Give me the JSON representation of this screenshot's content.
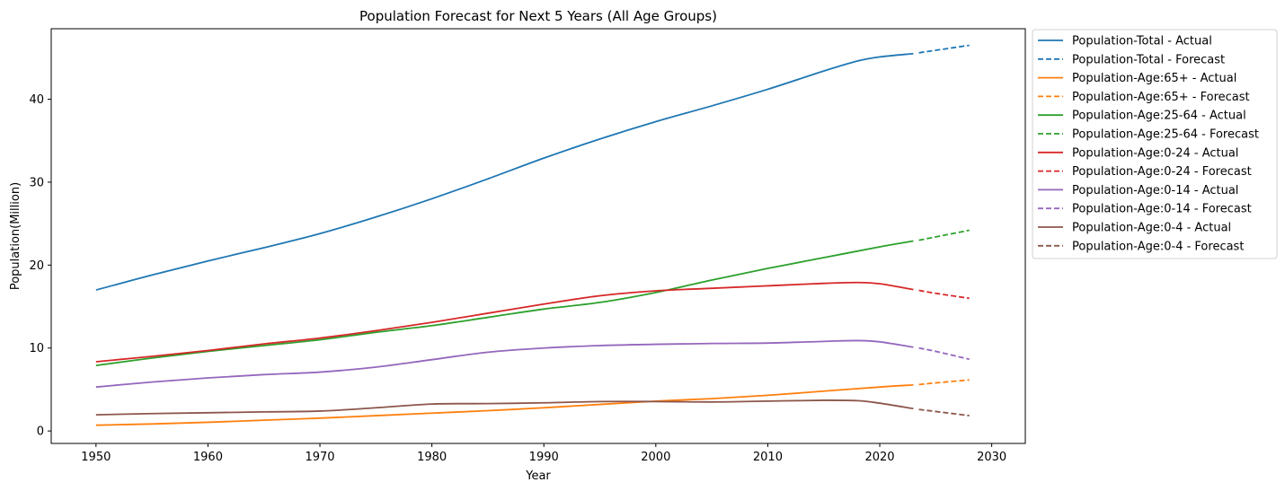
{
  "chart_data": {
    "type": "line",
    "title": "Population Forecast for Next 5 Years (All Age Groups)",
    "xlabel": "Year",
    "ylabel": "Population(Million)",
    "xlim": [
      1946,
      2033
    ],
    "ylim": [
      -1.5,
      48.5
    ],
    "xticks": [
      1950,
      1960,
      1970,
      1980,
      1990,
      2000,
      2010,
      2020,
      2030
    ],
    "yticks": [
      0,
      10,
      20,
      30,
      40
    ],
    "grid": false,
    "legend_position": "outside-right-top",
    "series": [
      {
        "name": "Population-Total - Actual",
        "color": "#1f77b4",
        "style": "solid",
        "x": [
          1950,
          1955,
          1960,
          1965,
          1970,
          1975,
          1980,
          1985,
          1990,
          1995,
          2000,
          2005,
          2010,
          2015,
          2018,
          2020,
          2023
        ],
        "y": [
          17.0,
          18.8,
          20.5,
          22.1,
          23.8,
          25.8,
          28.0,
          30.4,
          32.9,
          35.2,
          37.3,
          39.2,
          41.2,
          43.4,
          44.6,
          45.1,
          45.5
        ]
      },
      {
        "name": "Population-Total - Forecast",
        "color": "#1f77b4",
        "style": "dashed",
        "x": [
          2023.5,
          2025,
          2028
        ],
        "y": [
          45.6,
          45.9,
          46.5
        ]
      },
      {
        "name": "Population-Age:65+ - Actual",
        "color": "#ff7f0e",
        "style": "solid",
        "x": [
          1950,
          1955,
          1960,
          1965,
          1970,
          1975,
          1980,
          1985,
          1990,
          1995,
          2000,
          2005,
          2010,
          2015,
          2020,
          2023
        ],
        "y": [
          0.7,
          0.85,
          1.05,
          1.3,
          1.55,
          1.85,
          2.15,
          2.45,
          2.8,
          3.2,
          3.6,
          3.9,
          4.3,
          4.8,
          5.3,
          5.55
        ]
      },
      {
        "name": "Population-Age:65+ - Forecast",
        "color": "#ff7f0e",
        "style": "dashed",
        "x": [
          2023.5,
          2025,
          2028
        ],
        "y": [
          5.6,
          5.8,
          6.15
        ]
      },
      {
        "name": "Population-Age:25-64 - Actual",
        "color": "#2ca02c",
        "style": "solid",
        "x": [
          1950,
          1955,
          1960,
          1965,
          1970,
          1975,
          1980,
          1985,
          1990,
          1995,
          2000,
          2005,
          2010,
          2015,
          2020,
          2023
        ],
        "y": [
          7.9,
          8.8,
          9.6,
          10.3,
          11.0,
          11.9,
          12.7,
          13.7,
          14.7,
          15.5,
          16.7,
          18.2,
          19.6,
          20.9,
          22.2,
          22.9
        ]
      },
      {
        "name": "Population-Age:25-64 - Forecast",
        "color": "#2ca02c",
        "style": "dashed",
        "x": [
          2023.5,
          2025,
          2028
        ],
        "y": [
          23.0,
          23.4,
          24.2
        ]
      },
      {
        "name": "Population-Age:0-24 - Actual",
        "color": "#d62728",
        "style": "solid",
        "x": [
          1950,
          1955,
          1960,
          1965,
          1970,
          1975,
          1980,
          1985,
          1990,
          1995,
          2000,
          2005,
          2010,
          2015,
          2018,
          2020,
          2023
        ],
        "y": [
          8.35,
          9.0,
          9.7,
          10.5,
          11.2,
          12.1,
          13.1,
          14.2,
          15.3,
          16.3,
          16.9,
          17.2,
          17.5,
          17.8,
          17.9,
          17.75,
          17.05
        ]
      },
      {
        "name": "Population-Age:0-24 - Forecast",
        "color": "#d62728",
        "style": "dashed",
        "x": [
          2023.5,
          2025,
          2028
        ],
        "y": [
          16.95,
          16.6,
          16.0
        ]
      },
      {
        "name": "Population-Age:0-14 - Actual",
        "color": "#9467bd",
        "style": "solid",
        "x": [
          1950,
          1955,
          1960,
          1965,
          1970,
          1975,
          1980,
          1985,
          1990,
          1995,
          2000,
          2005,
          2010,
          2015,
          2018,
          2020,
          2023
        ],
        "y": [
          5.3,
          5.9,
          6.4,
          6.8,
          7.1,
          7.7,
          8.6,
          9.5,
          10.0,
          10.3,
          10.45,
          10.55,
          10.6,
          10.8,
          10.9,
          10.75,
          10.1
        ]
      },
      {
        "name": "Population-Age:0-14 - Forecast",
        "color": "#9467bd",
        "style": "dashed",
        "x": [
          2023.5,
          2025,
          2028
        ],
        "y": [
          10.0,
          9.6,
          8.65
        ]
      },
      {
        "name": "Population-Age:0-4 - Actual",
        "color": "#8c564b",
        "style": "solid",
        "x": [
          1950,
          1955,
          1960,
          1965,
          1970,
          1975,
          1980,
          1985,
          1990,
          1995,
          2000,
          2005,
          2010,
          2015,
          2018,
          2020,
          2023
        ],
        "y": [
          1.95,
          2.1,
          2.2,
          2.3,
          2.4,
          2.8,
          3.25,
          3.3,
          3.4,
          3.55,
          3.55,
          3.5,
          3.6,
          3.7,
          3.65,
          3.35,
          2.7
        ]
      },
      {
        "name": "Population-Age:0-4 - Forecast",
        "color": "#8c564b",
        "style": "dashed",
        "x": [
          2023.5,
          2025,
          2028
        ],
        "y": [
          2.6,
          2.35,
          1.85
        ]
      }
    ]
  }
}
